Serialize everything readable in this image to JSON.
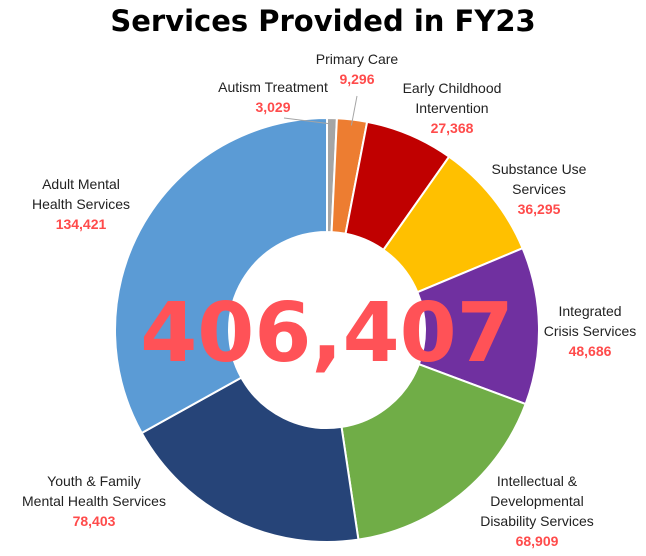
{
  "chart_data": {
    "type": "pie",
    "title": "Services Provided in FY23",
    "total_label": "406,407",
    "slices": [
      {
        "label": "Autism Treatment",
        "value": 3029,
        "value_label": "3,029",
        "color": "#a5a5a5"
      },
      {
        "label": "Primary Care",
        "value": 9296,
        "value_label": "9,296",
        "color": "#ed7d31"
      },
      {
        "label": "Early Childhood Intervention",
        "value": 27368,
        "value_label": "27,368",
        "color": "#c00000"
      },
      {
        "label": "Substance Use Services",
        "value": 36295,
        "value_label": "36,295",
        "color": "#ffc000"
      },
      {
        "label": "Integrated Crisis Services",
        "value": 48686,
        "value_label": "48,686",
        "color": "#7030a0"
      },
      {
        "label": "Intellectual & Developmental Disability Services",
        "value": 68909,
        "value_label": "68,909",
        "color": "#70ad47"
      },
      {
        "label": "Youth & Family Mental Health Services",
        "value": 78403,
        "value_label": "78,403",
        "color": "#264478"
      },
      {
        "label": "Adult Mental Health Services",
        "value": 134421,
        "value_label": "134,421",
        "color": "#5b9bd5"
      }
    ]
  }
}
